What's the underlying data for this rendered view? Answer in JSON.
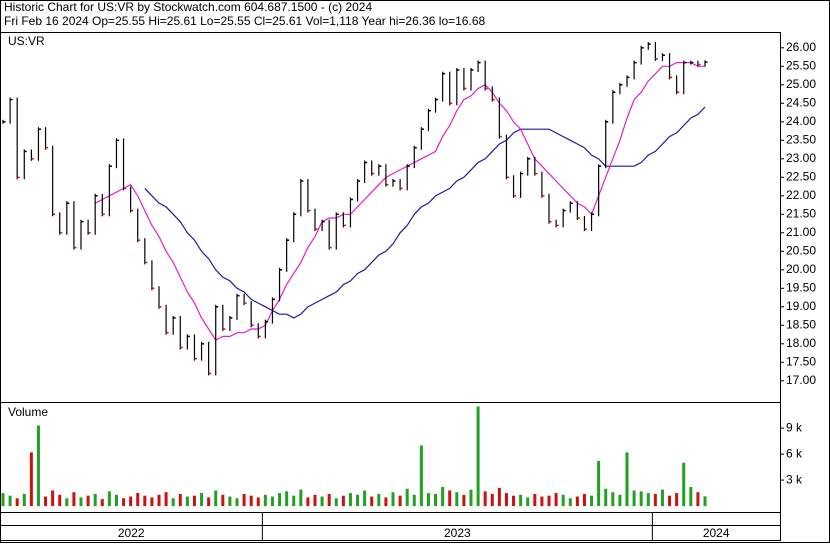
{
  "chart_data": {
    "type": "stock",
    "title": "Historic Chart for US:VR by Stockwatch.com 604.687.1500 - (c) 2024",
    "subtitle": "Fri Feb 16 2024  Op=25.55  Hi=25.61  Lo=25.55  Cl=25.61  Vol=1,118  Year hi=26.36  lo=16.68",
    "symbol": "US:VR",
    "volume_label": "Volume",
    "xlim": [
      0,
      110
    ],
    "x_periods": [
      {
        "label": "2022",
        "start": 0,
        "end": 37
      },
      {
        "label": "2023",
        "start": 37,
        "end": 92
      },
      {
        "label": "2024",
        "start": 92,
        "end": 110
      }
    ],
    "ylim": [
      16.4,
      26.4
    ],
    "yticks": [
      {
        "value": 17,
        "label": "17.00"
      },
      {
        "value": 17.5,
        "label": "17.50"
      },
      {
        "value": 18,
        "label": "18.00"
      },
      {
        "value": 18.5,
        "label": "18.50"
      },
      {
        "value": 19,
        "label": "19.00"
      },
      {
        "value": 19.5,
        "label": "19.50"
      },
      {
        "value": 20,
        "label": "20.00"
      },
      {
        "value": 20.5,
        "label": "20.50"
      },
      {
        "value": 21,
        "label": "21.00"
      },
      {
        "value": 21.5,
        "label": "21.50"
      },
      {
        "value": 22,
        "label": "22.00"
      },
      {
        "value": 22.5,
        "label": "22.50"
      },
      {
        "value": 23,
        "label": "23.00"
      },
      {
        "value": 23.5,
        "label": "23.50"
      },
      {
        "value": 24,
        "label": "24.00"
      },
      {
        "value": 24.5,
        "label": "24.50"
      },
      {
        "value": 25,
        "label": "25.00"
      },
      {
        "value": 25.5,
        "label": "25.50"
      },
      {
        "value": 26,
        "label": "26.00"
      }
    ],
    "close": {
      "color": "#000000",
      "values": [
        24.0,
        24.6,
        22.5,
        23.2,
        23.0,
        23.8,
        23.3,
        21.5,
        21.0,
        21.8,
        20.6,
        21.3,
        21.0,
        22.0,
        21.5,
        22.8,
        23.5,
        22.2,
        21.6,
        20.8,
        20.2,
        19.5,
        19.0,
        18.3,
        18.7,
        17.9,
        18.2,
        17.6,
        18.0,
        17.2,
        19.0,
        18.4,
        18.7,
        19.3,
        19.1,
        18.5,
        18.2,
        18.6,
        19.2,
        20.0,
        20.8,
        21.5,
        22.4,
        21.6,
        21.1,
        21.3,
        20.6,
        21.5,
        21.2,
        21.9,
        22.4,
        22.9,
        22.6,
        22.8,
        22.3,
        22.4,
        22.2,
        22.8,
        23.3,
        23.8,
        24.3,
        24.6,
        25.3,
        24.5,
        25.4,
        24.9,
        25.4,
        25.6,
        24.9,
        24.6,
        23.6,
        22.5,
        22.0,
        22.6,
        23.0,
        22.6,
        22.0,
        21.3,
        21.2,
        21.6,
        21.8,
        21.4,
        21.1,
        21.5,
        22.8,
        24.0,
        24.8,
        25.0,
        25.2,
        25.6,
        26.0,
        26.1,
        25.7,
        25.8,
        25.2,
        24.8,
        25.6,
        25.6,
        25.55,
        25.61
      ]
    },
    "ma_fast": {
      "color": "#e020d0",
      "values": [
        null,
        null,
        null,
        null,
        null,
        null,
        null,
        null,
        null,
        null,
        null,
        null,
        null,
        21.8,
        21.9,
        22.0,
        22.1,
        22.2,
        22.3,
        22.0,
        21.6,
        21.2,
        20.9,
        20.5,
        20.2,
        19.8,
        19.4,
        19.1,
        18.7,
        18.4,
        18.1,
        18.2,
        18.2,
        18.3,
        18.3,
        18.4,
        18.4,
        18.5,
        18.9,
        19.2,
        19.6,
        19.9,
        20.2,
        20.6,
        20.9,
        21.3,
        21.4,
        21.4,
        21.5,
        21.5,
        21.7,
        21.9,
        22.1,
        22.3,
        22.5,
        22.6,
        22.7,
        22.8,
        22.9,
        23.0,
        23.1,
        23.2,
        23.6,
        23.9,
        24.3,
        24.6,
        24.7,
        24.9,
        25.0,
        24.8,
        24.5,
        24.3,
        24.0,
        23.8,
        23.4,
        23.0,
        22.8,
        22.6,
        22.4,
        22.2,
        22.0,
        21.8,
        21.7,
        21.5,
        22.0,
        22.5,
        23.0,
        23.5,
        24.1,
        24.6,
        24.8,
        25.1,
        25.3,
        25.5,
        25.5,
        25.6,
        25.6,
        25.6,
        25.5,
        25.5
      ]
    },
    "ma_slow": {
      "color": "#1a1aa0",
      "values": [
        null,
        null,
        null,
        null,
        null,
        null,
        null,
        null,
        null,
        null,
        null,
        null,
        null,
        null,
        null,
        null,
        null,
        null,
        null,
        null,
        22.2,
        22.0,
        21.8,
        21.7,
        21.5,
        21.3,
        21.0,
        20.8,
        20.5,
        20.3,
        20.0,
        19.8,
        19.7,
        19.5,
        19.4,
        19.2,
        19.1,
        19.0,
        18.9,
        18.8,
        18.8,
        18.7,
        18.8,
        19.0,
        19.1,
        19.2,
        19.3,
        19.4,
        19.6,
        19.7,
        19.9,
        20.0,
        20.2,
        20.4,
        20.5,
        20.7,
        21.0,
        21.2,
        21.5,
        21.7,
        21.8,
        22.0,
        22.1,
        22.2,
        22.4,
        22.5,
        22.7,
        22.9,
        23.0,
        23.2,
        23.4,
        23.5,
        23.7,
        23.8,
        23.8,
        23.8,
        23.8,
        23.8,
        23.7,
        23.6,
        23.5,
        23.4,
        23.3,
        23.1,
        23.0,
        22.8,
        22.8,
        22.8,
        22.8,
        22.8,
        22.9,
        23.1,
        23.2,
        23.4,
        23.6,
        23.7,
        23.9,
        24.1,
        24.2,
        24.4
      ]
    },
    "volume": {
      "up_color": "#22a022",
      "down_color": "#cc1111",
      "ylim": [
        -800,
        11900
      ],
      "yticks": [
        {
          "value": 3000,
          "label": "3 k"
        },
        {
          "value": 6000,
          "label": "6 k"
        },
        {
          "value": 9000,
          "label": "9 k"
        }
      ],
      "values": [
        1500,
        1200,
        900,
        1400,
        6200,
        9300,
        1100,
        1800,
        1300,
        900,
        1600,
        1000,
        1200,
        1400,
        800,
        1700,
        1300,
        900,
        1100,
        1500,
        1200,
        1000,
        1300,
        1600,
        900,
        1400,
        1100,
        1200,
        1500,
        1000,
        1800,
        1300,
        1100,
        900,
        1400,
        1200,
        1000,
        1300,
        1100,
        1500,
        1700,
        1200,
        1900,
        1000,
        1300,
        1100,
        1400,
        900,
        1200,
        1500,
        1300,
        1800,
        1100,
        1400,
        1000,
        1600,
        1200,
        2000,
        1300,
        7000,
        1500,
        1400,
        2200,
        1800,
        1600,
        1300,
        1900,
        11500,
        1700,
        1400,
        2100,
        1500,
        1200,
        1300,
        1000,
        1400,
        1100,
        1200,
        1500,
        1300,
        900,
        1100,
        1400,
        1200,
        5200,
        2000,
        1600,
        1300,
        6200,
        1800,
        1700,
        1500,
        1400,
        1900,
        1200,
        1500,
        5000,
        2200,
        1600,
        1118
      ]
    }
  }
}
